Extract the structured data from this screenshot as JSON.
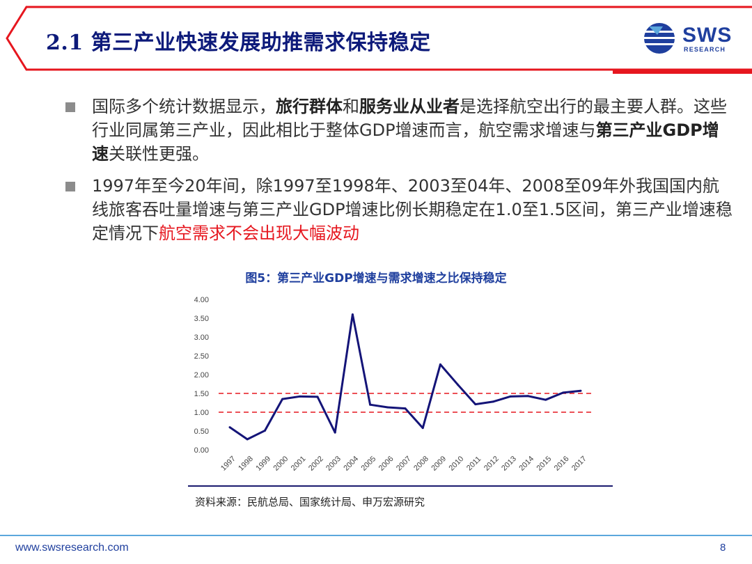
{
  "header": {
    "title": "2.1  第三产业快速发展助推需求保持稳定",
    "logo_text": "SWS",
    "logo_sub": "RESEARCH",
    "brand_color": "#1f3f9e",
    "accent_color": "#e6161e"
  },
  "bullets": [
    {
      "segments": [
        {
          "text": "国际多个统计数据显示，",
          "style": "normal"
        },
        {
          "text": "旅行群体",
          "style": "bold"
        },
        {
          "text": "和",
          "style": "normal"
        },
        {
          "text": "服务业从业者",
          "style": "bold"
        },
        {
          "text": "是选择航空出行的最主要人群。这些行业同属第三产业，因此相比于整体GDP增速而言，航空需求增速与",
          "style": "normal"
        },
        {
          "text": "第三产业GDP增速",
          "style": "bold"
        },
        {
          "text": "关联性更强。",
          "style": "normal"
        }
      ]
    },
    {
      "segments": [
        {
          "text": "1997年至今20年间，除1997至1998年、2003至04年、2008至09年外我国国内航线旅客吞吐量增速与第三产业GDP增速比例长期稳定在1.0至1.5区间，第三产业增速稳定情况下",
          "style": "normal"
        },
        {
          "text": "航空需求不会出现大幅波动",
          "style": "red"
        }
      ]
    }
  ],
  "chart_data": {
    "type": "line",
    "title": "图5：第三产业GDP增速与需求增速之比保持稳定",
    "categories": [
      "1997",
      "1998",
      "1999",
      "2000",
      "2001",
      "2002",
      "2003",
      "2004",
      "2005",
      "2006",
      "2007",
      "2008",
      "2009",
      "2010",
      "2011",
      "2012",
      "2013",
      "2014",
      "2015",
      "2016",
      "2017"
    ],
    "series": [
      {
        "values": [
          0.6,
          0.28,
          0.51,
          1.35,
          1.42,
          1.41,
          0.46,
          3.6,
          1.2,
          1.13,
          1.1,
          0.58,
          2.27,
          1.73,
          1.21,
          1.28,
          1.42,
          1.43,
          1.33,
          1.52,
          1.57
        ],
        "color": "#141478"
      }
    ],
    "reference_lines": [
      {
        "value": 1.0,
        "color": "#e6161e",
        "style": "dashed"
      },
      {
        "value": 1.5,
        "color": "#e6161e",
        "style": "dashed"
      }
    ],
    "yticks": [
      "0.00",
      "0.50",
      "1.00",
      "1.50",
      "2.00",
      "2.50",
      "3.00",
      "3.50",
      "4.00"
    ],
    "ylim": [
      0,
      4
    ],
    "grid": false,
    "legend": "none"
  },
  "source": "资料来源：民航总局、国家统计局、申万宏源研究",
  "footer": {
    "url": "www.swsresearch.com",
    "page": "8"
  }
}
